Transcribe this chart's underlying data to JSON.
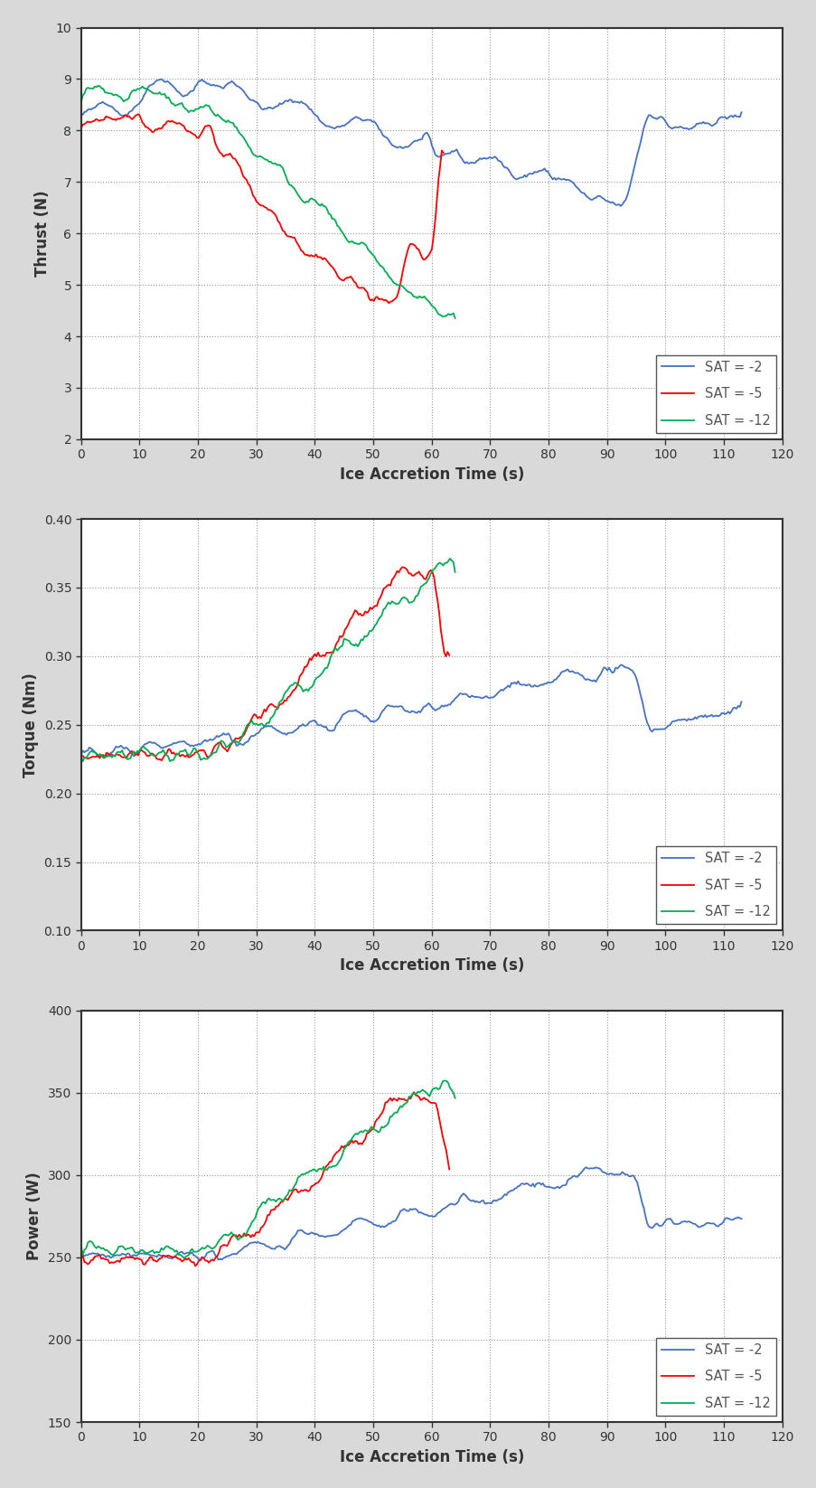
{
  "colors": {
    "blue": "#4472C4",
    "red": "#FF0000",
    "green": "#00B050"
  },
  "legend_labels": [
    "SAT = -2",
    "SAT = -5",
    "SAT = -12"
  ],
  "xlabel": "Ice Accretion Time (s)",
  "xlim": [
    0,
    120
  ],
  "xticks": [
    0,
    10,
    20,
    30,
    40,
    50,
    60,
    70,
    80,
    90,
    100,
    110,
    120
  ],
  "plot1": {
    "ylabel": "Thrust (N)",
    "ylim": [
      2,
      10
    ],
    "yticks": [
      2,
      3,
      4,
      5,
      6,
      7,
      8,
      9,
      10
    ]
  },
  "plot2": {
    "ylabel": "Torque (Nm)",
    "ylim": [
      0.1,
      0.4
    ],
    "yticks": [
      0.1,
      0.15,
      0.2,
      0.25,
      0.3,
      0.35,
      0.4
    ]
  },
  "plot3": {
    "ylabel": "Power (W)",
    "ylim": [
      150,
      400
    ],
    "yticks": [
      150,
      200,
      250,
      300,
      350,
      400
    ]
  },
  "line_width": 1.3,
  "background_color": "#FFFFFF",
  "outer_background": "#D9D9D9",
  "grid_color": "#999999",
  "grid_style": ":"
}
